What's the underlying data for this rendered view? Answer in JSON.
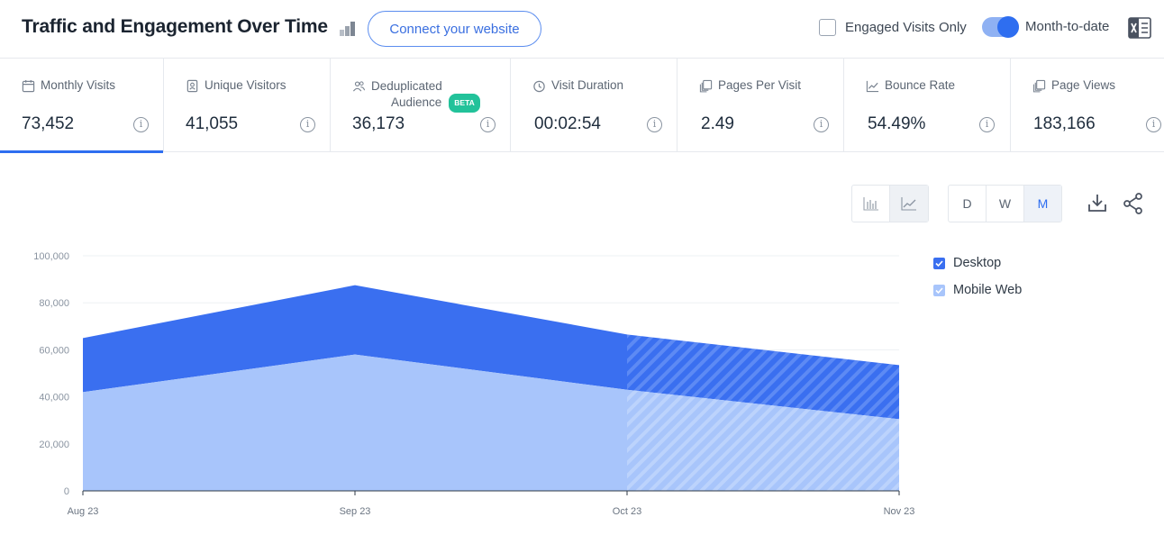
{
  "header": {
    "title": "Traffic and Engagement Over Time",
    "connect_label": "Connect your website",
    "engaged_label": "Engaged Visits Only",
    "engaged_checked": false,
    "month_to_date_label": "Month-to-date",
    "month_to_date_on": true
  },
  "metrics": [
    {
      "label": "Monthly Visits",
      "value": "73,452",
      "icon": "calendar-icon",
      "active": true
    },
    {
      "label": "Unique Visitors",
      "value": "41,055",
      "icon": "id-badge-icon",
      "active": false
    },
    {
      "label": "Deduplicated",
      "label2": "Audience",
      "badge": "BETA",
      "value": "36,173",
      "icon": "users-icon",
      "active": false
    },
    {
      "label": "Visit Duration",
      "value": "00:02:54",
      "icon": "clock-icon",
      "active": false
    },
    {
      "label": "Pages Per Visit",
      "value": "2.49",
      "icon": "pages-icon",
      "active": false
    },
    {
      "label": "Bounce Rate",
      "value": "54.49%",
      "icon": "trend-icon",
      "active": false
    },
    {
      "label": "Page Views",
      "value": "183,166",
      "icon": "pages-icon",
      "active": false
    }
  ],
  "controls": {
    "chart_types": [
      "bar-chart-icon",
      "line-chart-icon"
    ],
    "selected_chart_type": "line-chart-icon",
    "granularity": [
      "D",
      "W",
      "M"
    ],
    "selected_granularity": "M"
  },
  "colors": {
    "desktop": "#3a6ff0",
    "mobile_web": "#a8c5fb",
    "accent": "#2e6ef0",
    "badge": "#22c29a"
  },
  "chart_data": {
    "type": "area",
    "stacked": true,
    "categories": [
      "Aug 23",
      "Sep 23",
      "Oct 23",
      "Nov 23"
    ],
    "series": [
      {
        "name": "Mobile Web",
        "values": [
          42000,
          58000,
          43000,
          30500
        ]
      },
      {
        "name": "Desktop",
        "values": [
          23000,
          29500,
          23500,
          23000
        ]
      }
    ],
    "legend": [
      "Desktop",
      "Mobile Web"
    ],
    "legend_position": "right",
    "ylim": [
      0,
      100000
    ],
    "yticks": [
      "100,000",
      "80,000",
      "60,000",
      "40,000",
      "20,000",
      "0"
    ],
    "grid": true,
    "partial_from": "Oct 23"
  }
}
